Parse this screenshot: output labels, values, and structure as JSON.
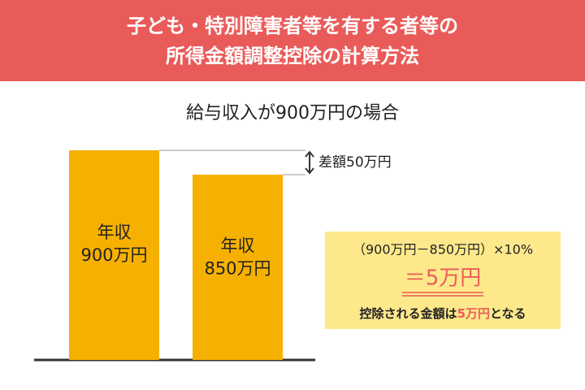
{
  "header": {
    "title_lines": [
      "子ども・特別障害者等を有する者等の",
      "所得金額調整控除の計算方法"
    ]
  },
  "chart_data": {
    "type": "bar",
    "title": "給与収入が900万円の場合",
    "categories": [
      "年収",
      "年収"
    ],
    "values": [
      900,
      850
    ],
    "value_labels": [
      "900万円",
      "850万円"
    ],
    "color": "#f6b100",
    "ylim": [
      470,
      900
    ],
    "annotation": "差額50万円"
  },
  "result_box": {
    "formula": "（900万円－850万円）×10%",
    "result": "＝5万円",
    "conclusion": [
      "控除される金額は",
      "5万円",
      "となる"
    ]
  }
}
